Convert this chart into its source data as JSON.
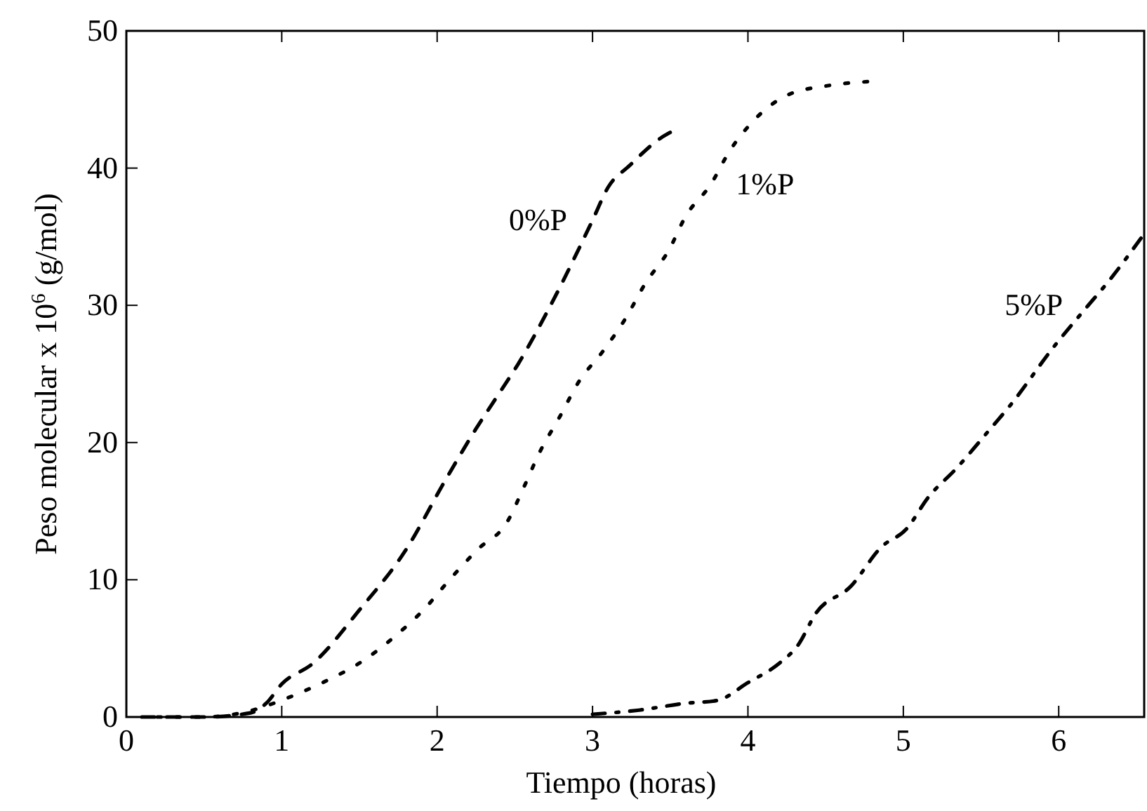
{
  "chart_data": {
    "type": "line",
    "xlabel": "Tiempo (horas)",
    "ylabel": "Peso molecular x 10$^{6}$ (g/mol)",
    "xlim": [
      0,
      6.55
    ],
    "xticks": [
      0,
      1,
      2,
      3,
      4,
      5,
      6
    ],
    "ylim": [
      0,
      50
    ],
    "yticks": [
      0,
      10,
      20,
      30,
      40,
      50
    ],
    "grid": false,
    "marker": "none",
    "series": [
      {
        "name": "0%P",
        "color": "#000000",
        "line_style": "dashed",
        "x": [
          0.1,
          0.5,
          0.8,
          0.9,
          1.0,
          1.2,
          1.5,
          1.8,
          2.05,
          2.25,
          2.4,
          2.52,
          2.73,
          3.0,
          3.1,
          3.24,
          3.44,
          3.5
        ],
        "values": [
          0,
          0,
          0.3,
          1,
          2.4,
          3.9,
          7.8,
          12.2,
          17.2,
          21,
          23.6,
          25.7,
          30,
          36.2,
          38.6,
          40.2,
          42.2,
          42.6
        ]
      },
      {
        "name": "1%P",
        "color": "#000000",
        "line_style": "dotted",
        "x": [
          0.2,
          0.5,
          0.78,
          1.04,
          1.28,
          1.51,
          1.72,
          1.92,
          2.08,
          2.26,
          2.45,
          2.56,
          2.66,
          2.79,
          2.91,
          3.07,
          3.21,
          3.34,
          3.49,
          3.6,
          3.76,
          3.88,
          4.04,
          4.25,
          4.51,
          4.77
        ],
        "values": [
          0,
          0,
          0.4,
          1.4,
          2.6,
          4,
          5.8,
          7.9,
          10,
          12.2,
          14.2,
          16.8,
          19.3,
          21.9,
          24.4,
          26.7,
          29,
          31.6,
          34,
          36.5,
          38.8,
          41.2,
          43.5,
          45.3,
          46,
          46.3
        ]
      },
      {
        "name": "5%P",
        "color": "#000000",
        "line_style": "dashdot",
        "x": [
          3.0,
          3.3,
          3.6,
          3.8,
          4.0,
          4.2,
          4.32,
          4.44,
          4.66,
          4.86,
          5.02,
          5.16,
          5.34,
          5.56,
          5.68,
          5.97,
          6.19,
          6.31,
          6.53
        ],
        "values": [
          0.2,
          0.5,
          1,
          1.2,
          2.5,
          3.9,
          5.2,
          7.6,
          9.5,
          12.4,
          13.7,
          16,
          18.1,
          21,
          22.6,
          27,
          30,
          31.6,
          34.9
        ]
      }
    ]
  }
}
